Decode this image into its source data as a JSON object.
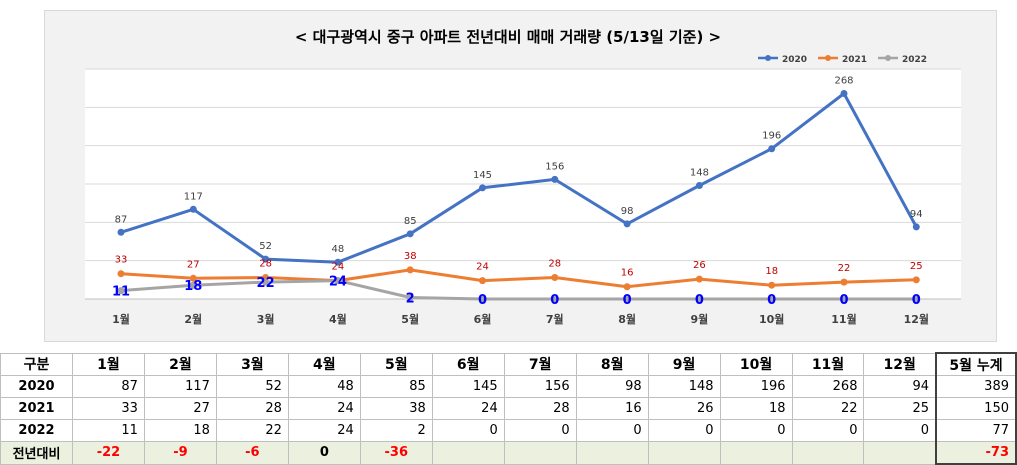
{
  "chart_data": {
    "type": "line",
    "title": "< 대구광역시 중구  아파트 전년대비 매매 거래량 (5/13일 기준) >",
    "categories": [
      "1월",
      "2월",
      "3월",
      "4월",
      "5월",
      "6월",
      "7월",
      "8월",
      "9월",
      "10월",
      "11월",
      "12월"
    ],
    "series": [
      {
        "name": "2020",
        "color": "#4472c4",
        "values": [
          87,
          117,
          52,
          48,
          85,
          145,
          156,
          98,
          148,
          196,
          268,
          94
        ]
      },
      {
        "name": "2021",
        "color": "#ed7d31",
        "values": [
          33,
          27,
          28,
          24,
          38,
          24,
          28,
          16,
          26,
          18,
          22,
          25
        ]
      },
      {
        "name": "2022",
        "color": "#a5a5a5",
        "values": [
          11,
          18,
          22,
          24,
          2,
          0,
          0,
          0,
          0,
          0,
          0,
          0
        ]
      }
    ],
    "ylim": [
      0,
      300
    ],
    "grid": true,
    "legend": "top-right"
  },
  "table": {
    "header": [
      "구분",
      "1월",
      "2월",
      "3월",
      "4월",
      "5월",
      "6월",
      "7월",
      "8월",
      "9월",
      "10월",
      "11월",
      "12월",
      "5월 누계"
    ],
    "rows": [
      {
        "label": "2020",
        "values": [
          "87",
          "117",
          "52",
          "48",
          "85",
          "145",
          "156",
          "98",
          "148",
          "196",
          "268",
          "94",
          "389"
        ]
      },
      {
        "label": "2021",
        "values": [
          "33",
          "27",
          "28",
          "24",
          "38",
          "24",
          "28",
          "16",
          "26",
          "18",
          "22",
          "25",
          "150"
        ]
      },
      {
        "label": "2022",
        "values": [
          "11",
          "18",
          "22",
          "24",
          "2",
          "0",
          "0",
          "0",
          "0",
          "0",
          "0",
          "0",
          "77"
        ]
      },
      {
        "label": "전년대비",
        "values": [
          "-22",
          "-9",
          "-6",
          "0",
          "-36",
          "",
          "",
          "",
          "",
          "",
          "",
          "",
          "-73"
        ]
      }
    ]
  }
}
